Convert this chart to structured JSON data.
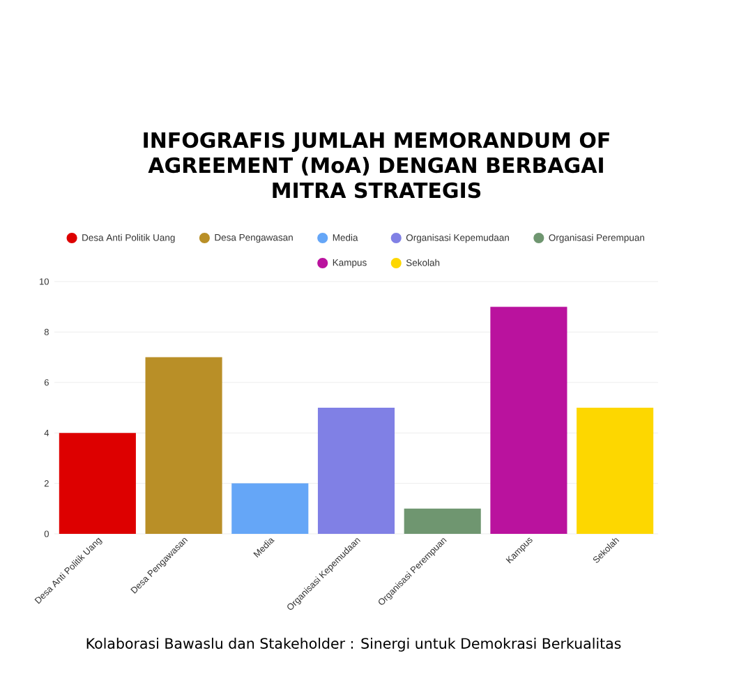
{
  "chart_data": {
    "type": "bar",
    "title": "INFOGRAFIS JUMLAH MEMORANDUM OF AGREEMENT (MoA) DENGAN BERBAGAI MITRA STRATEGIS",
    "categories": [
      "Desa Anti Politik Uang",
      "Desa Pengawasan",
      "Media",
      "Organisasi Kepemudaan",
      "Organisasi Perempuan",
      "Kampus",
      "Sekolah"
    ],
    "series": [
      {
        "name": "Desa Anti Politik Uang",
        "color": "#dd0000",
        "values": [
          4,
          null,
          null,
          null,
          null,
          null,
          null
        ]
      },
      {
        "name": "Desa Pengawasan",
        "color": "#b98f27",
        "values": [
          null,
          7,
          null,
          null,
          null,
          null,
          null
        ]
      },
      {
        "name": "Media",
        "color": "#65a6f7",
        "values": [
          null,
          null,
          2,
          null,
          null,
          null,
          null
        ]
      },
      {
        "name": "Organisasi Kepemudaan",
        "color": "#8080e5",
        "values": [
          null,
          null,
          null,
          5,
          null,
          null,
          null
        ]
      },
      {
        "name": "Organisasi Perempuan",
        "color": "#6f9670",
        "values": [
          null,
          null,
          null,
          null,
          1,
          null,
          null
        ]
      },
      {
        "name": "Kampus",
        "color": "#ba129e",
        "values": [
          null,
          null,
          null,
          null,
          null,
          9,
          null
        ]
      },
      {
        "name": "Sekolah",
        "color": "#fdd700",
        "values": [
          null,
          null,
          null,
          null,
          null,
          null,
          5
        ]
      }
    ],
    "stacked": true,
    "ylim": [
      0,
      10
    ],
    "yticks": [
      0,
      2,
      4,
      6,
      8,
      10
    ],
    "grid": "y",
    "legend": "top",
    "annotations": [
      "Kolaborasi Bawaslu dan Stakeholder : Sinergi untuk Demokrasi Berkualitas"
    ]
  }
}
